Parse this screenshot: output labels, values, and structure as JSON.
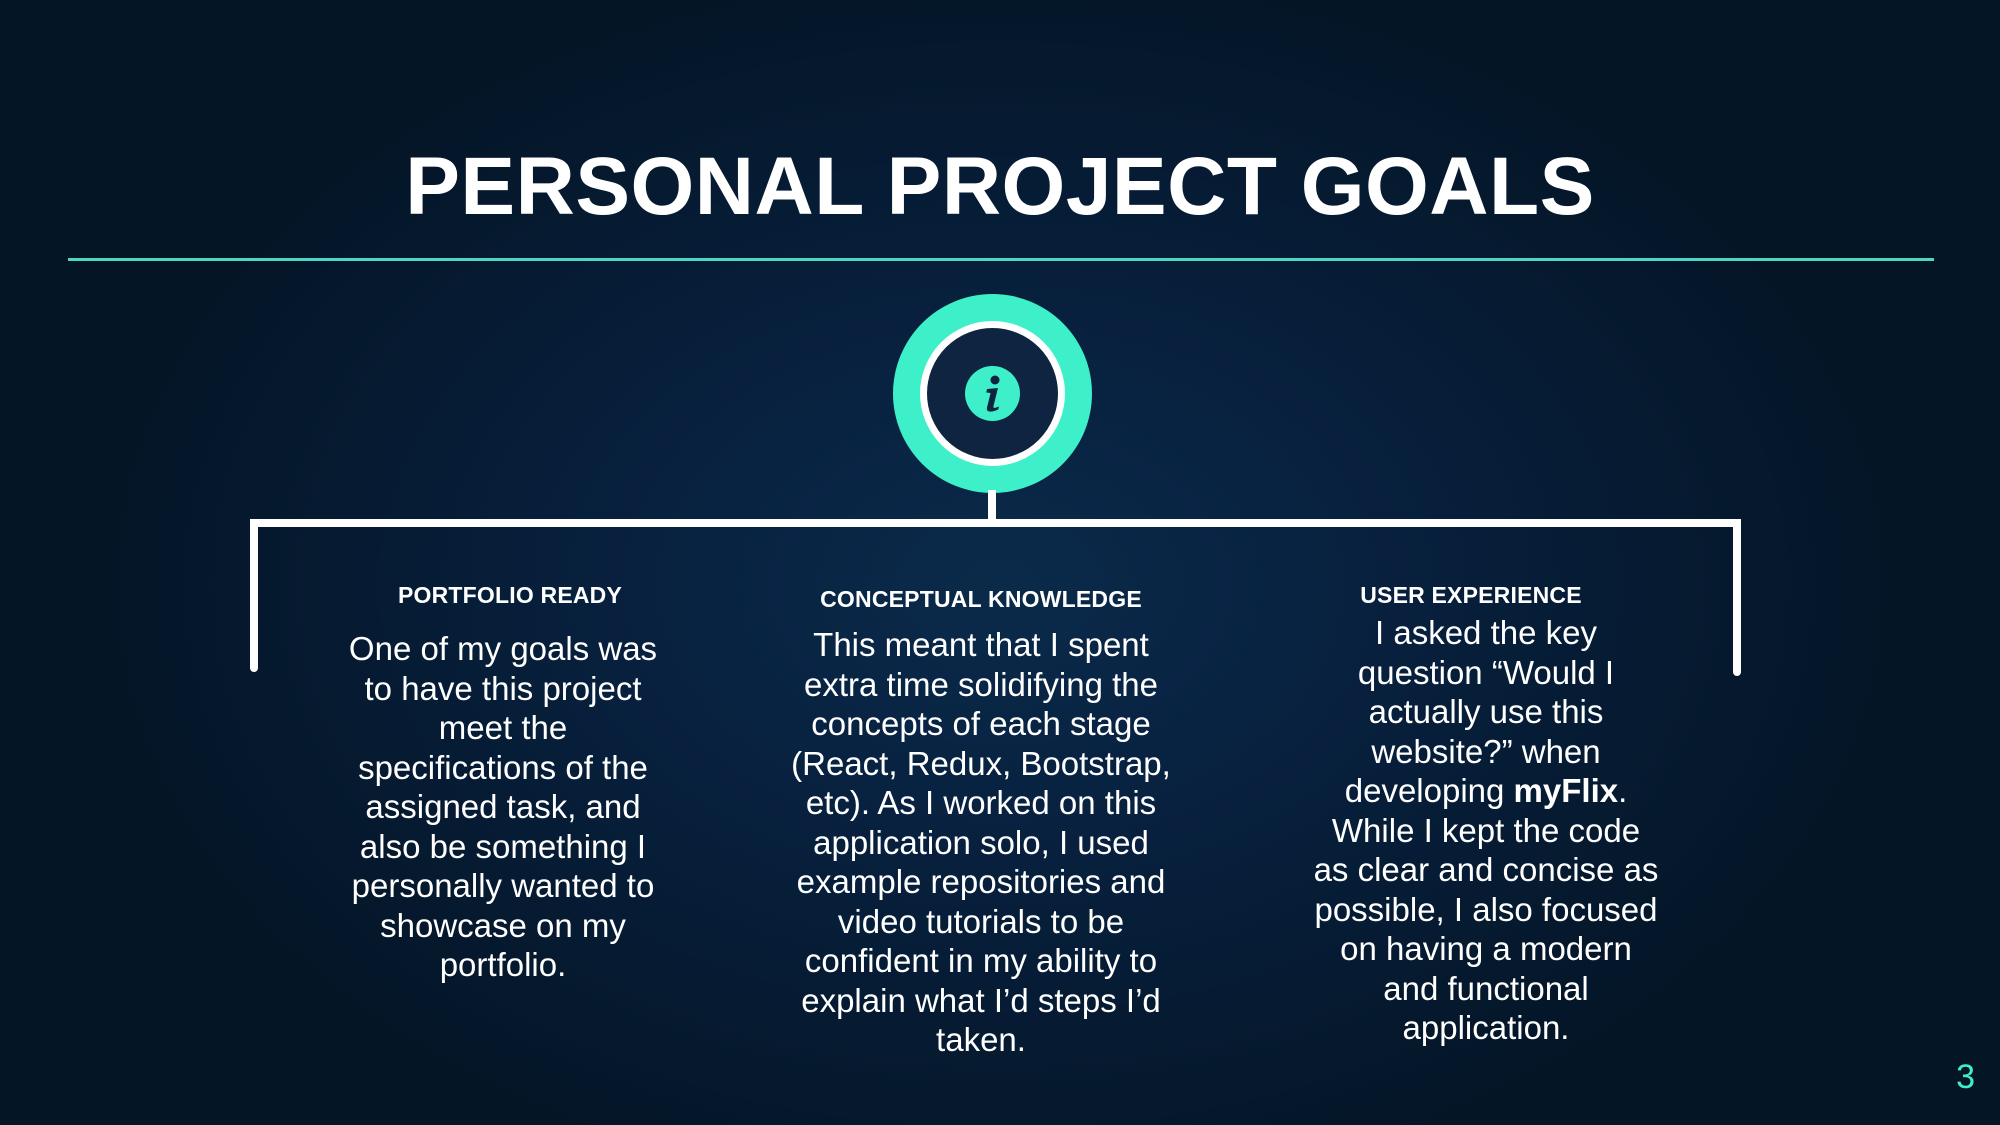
{
  "slide": {
    "title": "PERSONAL PROJECT GOALS",
    "page_number": "3",
    "colors": {
      "background": "#061b33",
      "accent": "#3ef0c9",
      "rule": "#4fd6c3",
      "text": "#ffffff"
    },
    "icon": "info-icon"
  },
  "columns": [
    {
      "heading": "PORTFOLIO READY",
      "body": "One of my goals was to have this project meet the specifications of the assigned task, and also be something I personally wanted to showcase on my portfolio."
    },
    {
      "heading": "CONCEPTUAL KNOWLEDGE",
      "body": "This meant that I spent extra time solidifying the concepts of each stage (React, Redux, Bootstrap, etc). As I worked on this application solo, I used example repositories and video tutorials to be confident in my ability to explain what I’d steps I’d taken."
    },
    {
      "heading": "USER EXPERIENCE",
      "body_before": "I asked the key question “Would I actually use this website?” when developing ",
      "body_bold": "myFlix",
      "body_after": ". While I kept the code as clear and concise as possible, I also focused on having a modern and functional application."
    }
  ]
}
